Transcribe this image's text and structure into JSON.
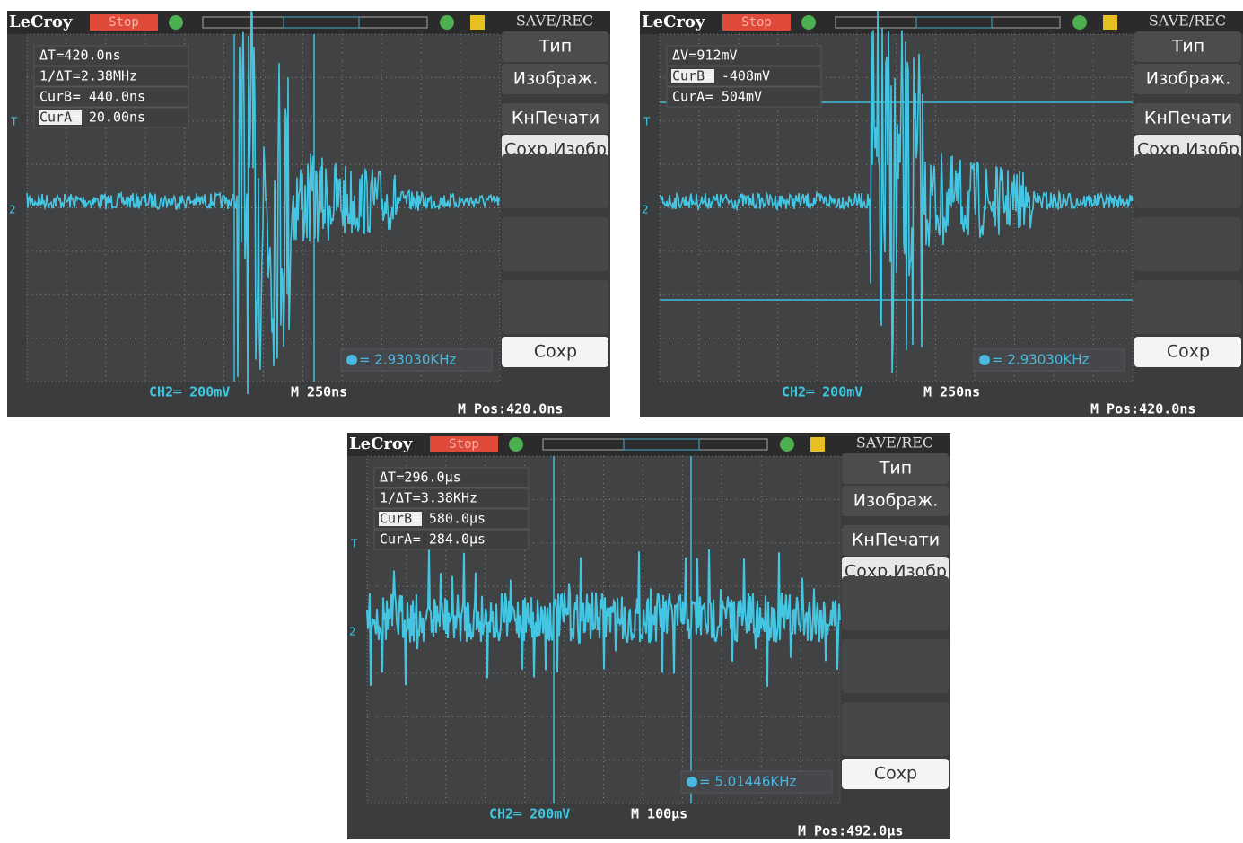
{
  "screens": [
    {
      "brand": "LeCroy",
      "status": "Stop",
      "mode": "SAVE/REC",
      "trigger_marker": "T",
      "channel_marker": "2",
      "measurements": [
        {
          "label": "ΔT",
          "value": "=420.0ns"
        },
        {
          "label": "1/ΔT",
          "value": "=2.38MHz"
        },
        {
          "label": "CurB",
          "value": "= 440.0ns"
        },
        {
          "label": "CurA",
          "value": "= 20.00ns",
          "highlight": true
        }
      ],
      "menu": [
        "Тип",
        "Изображ.",
        "КнПечати",
        "Сохр.Изобр",
        "Сохр"
      ],
      "frequency": "= 2.93030KHz",
      "channel": "CH2═ 200mV",
      "timebase": "M 250ns",
      "position": "M Pos:420.0ns"
    },
    {
      "brand": "LeCroy",
      "status": "Stop",
      "mode": "SAVE/REC",
      "trigger_marker": "T",
      "channel_marker": "2",
      "measurements": [
        {
          "label": "ΔV",
          "value": "=912mV"
        },
        {
          "label": "CurB",
          "value": "= -408mV",
          "highlight": true
        },
        {
          "label": "CurA",
          "value": "= 504mV"
        }
      ],
      "menu": [
        "Тип",
        "Изображ.",
        "КнПечати",
        "Сохр.Изобр",
        "Сохр"
      ],
      "frequency": "= 2.93030KHz",
      "channel": "CH2═ 200mV",
      "timebase": "M 250ns",
      "position": "M Pos:420.0ns"
    },
    {
      "brand": "LeCroy",
      "status": "Stop",
      "mode": "SAVE/REC",
      "trigger_marker": "T",
      "channel_marker": "2",
      "measurements": [
        {
          "label": "ΔT",
          "value": "=296.0μs"
        },
        {
          "label": "1/ΔT",
          "value": "=3.38KHz"
        },
        {
          "label": "CurB",
          "value": "= 580.0μs",
          "highlight": true
        },
        {
          "label": "CurA",
          "value": "= 284.0μs"
        }
      ],
      "menu": [
        "Тип",
        "Изображ.",
        "КнПечати",
        "Сохр.Изобр",
        "Сохр"
      ],
      "frequency": "= 5.01446KHz",
      "channel": "CH2═ 200mV",
      "timebase": "M 100μs",
      "position": "M Pos:492.0μs"
    }
  ]
}
